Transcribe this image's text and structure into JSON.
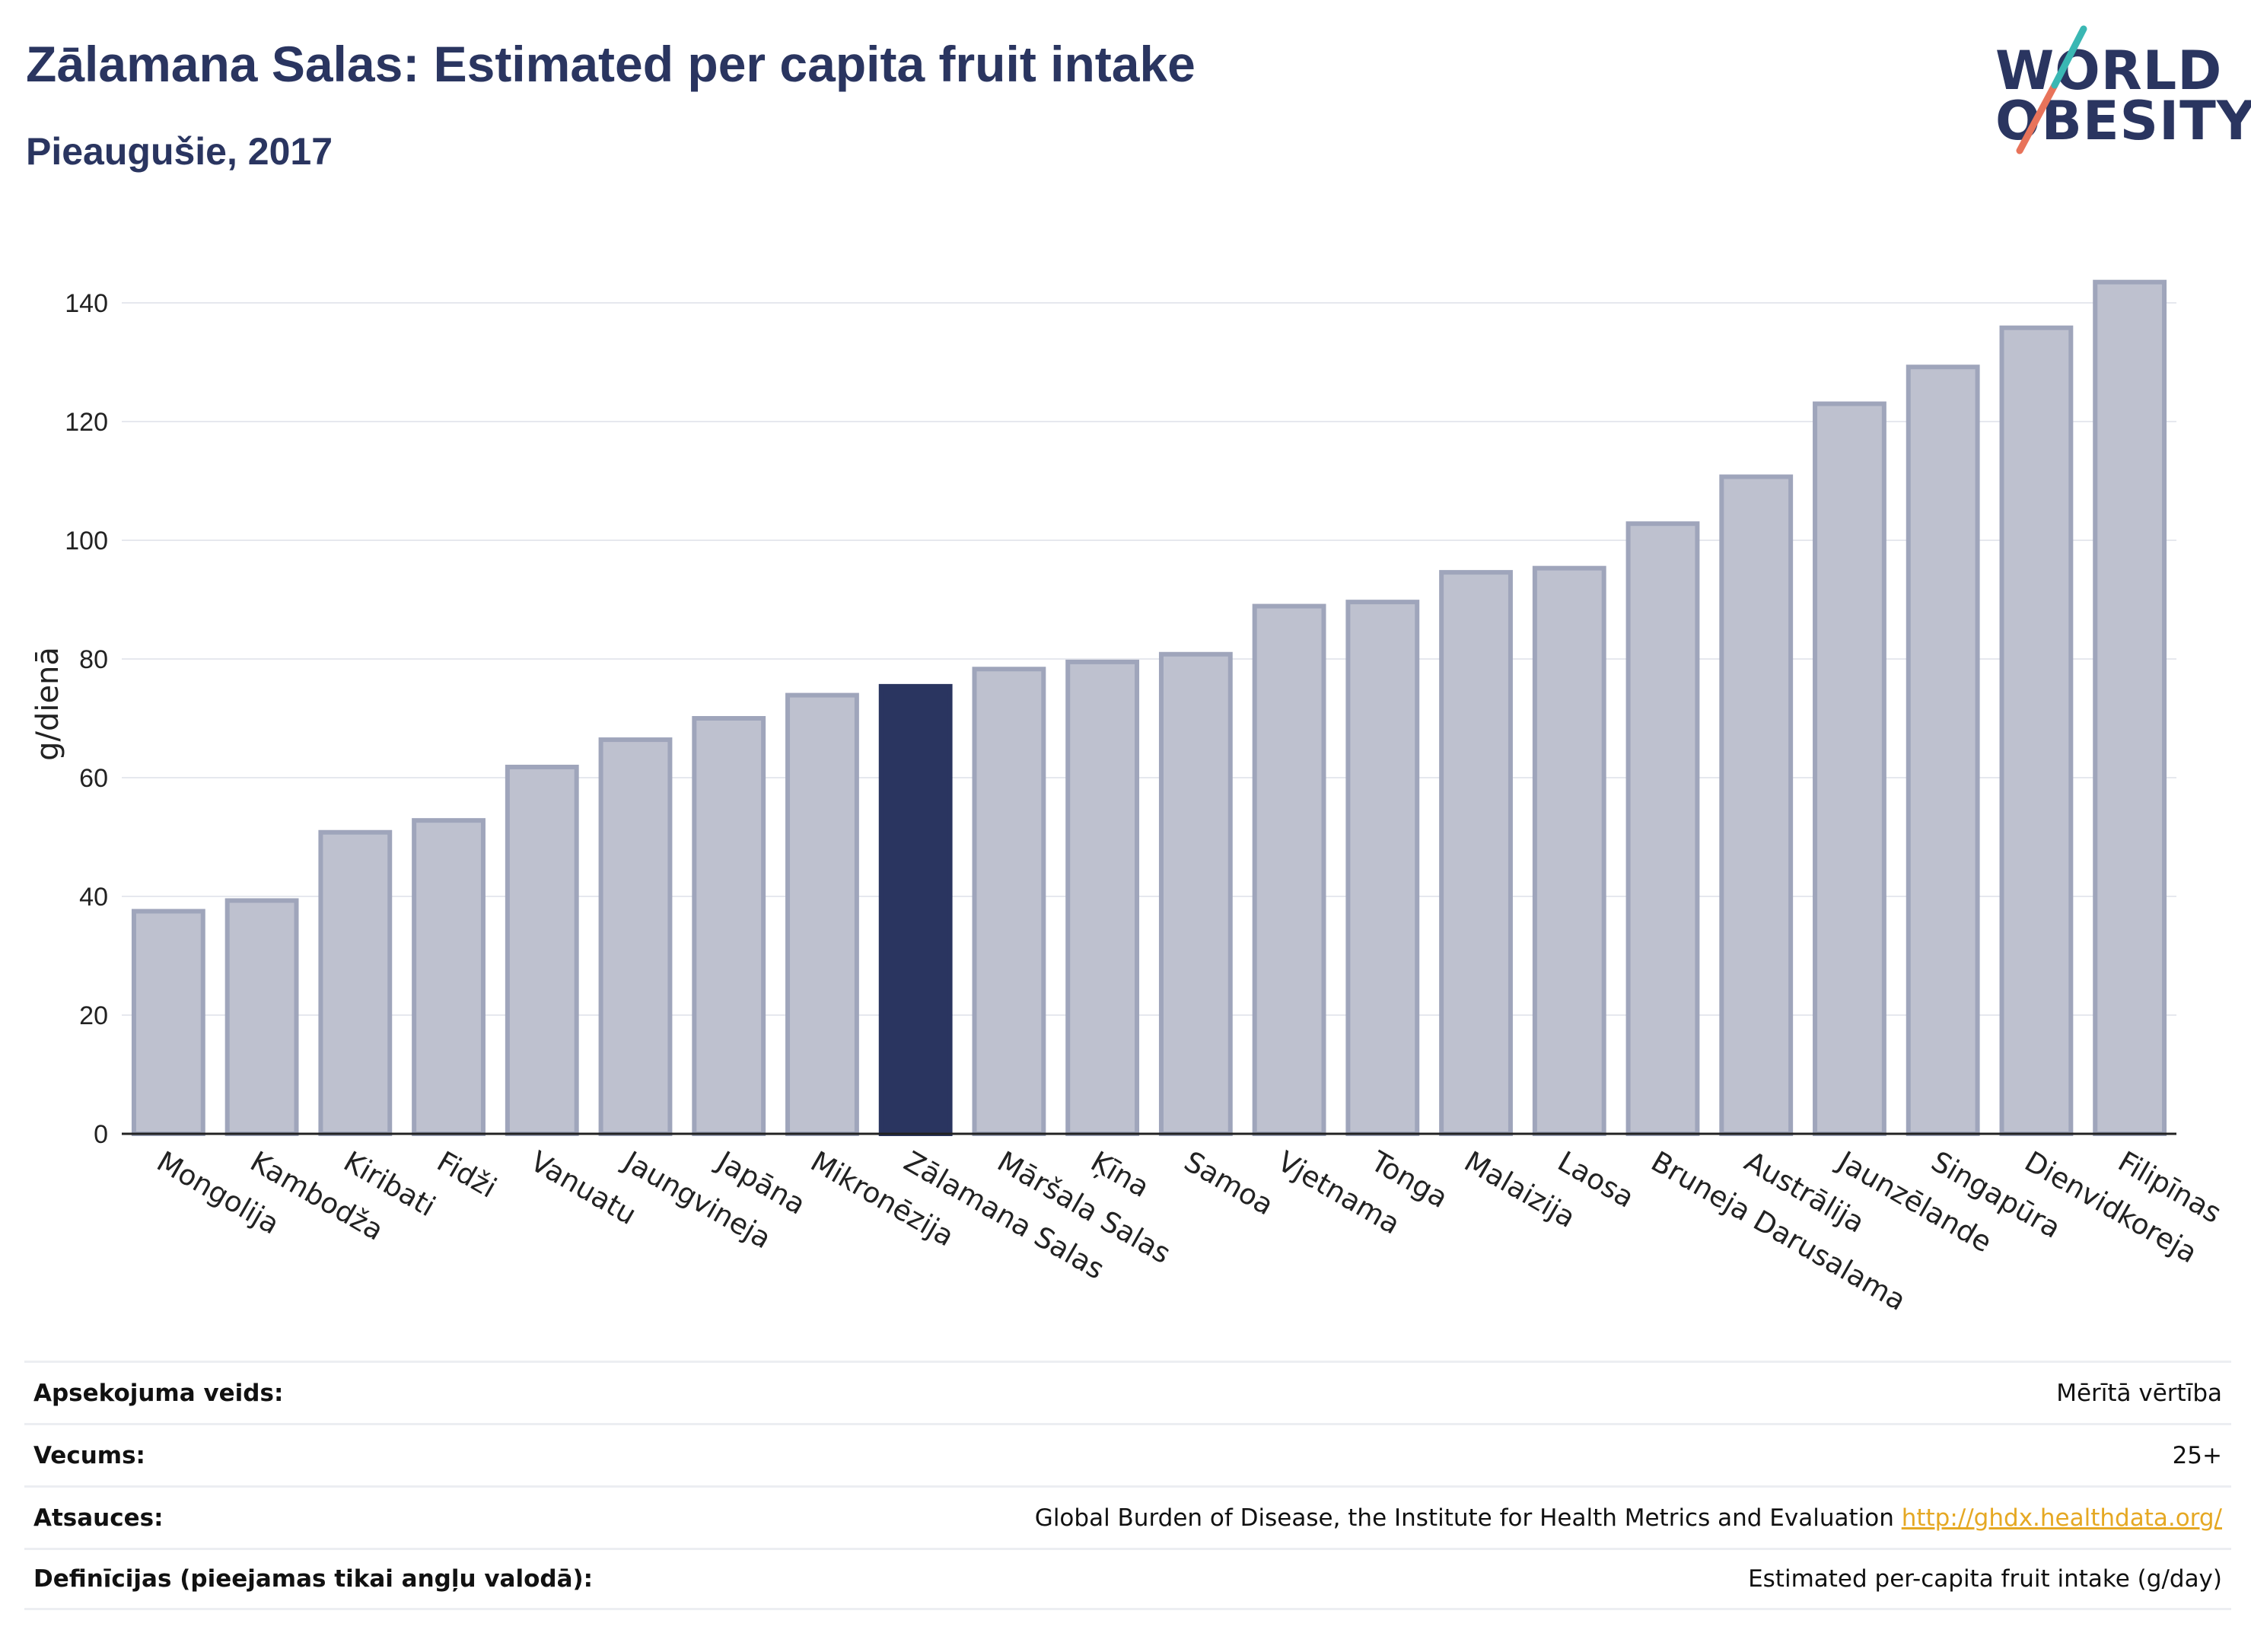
{
  "header": {
    "title": "Zālamana Salas: Estimated per capita fruit intake",
    "subtitle": "Pieaugušie, 2017"
  },
  "logo": {
    "line1": "WORLD",
    "line2": "OBESITY"
  },
  "colors": {
    "highlight": "#2a3560",
    "bar": "#bec1cf",
    "bar_border": "#9fa5bb",
    "logo_teal": "#3ab7b3",
    "logo_coral": "#e8735a"
  },
  "chart_data": {
    "type": "bar",
    "ylabel": "g/dienā",
    "ylim": [
      0,
      150
    ],
    "yticks": [
      0,
      20,
      40,
      60,
      80,
      100,
      120,
      140
    ],
    "grid": true,
    "highlight": "Zālamana Salas",
    "categories": [
      "Mongolija",
      "Kambodža",
      "Kiribati",
      "Fidži",
      "Vanuatu",
      "Jaungvineja",
      "Japāna",
      "Mikronēzija",
      "Zālamana Salas",
      "Māršala Salas",
      "Ķīna",
      "Samoa",
      "Vjetnama",
      "Tonga",
      "Malaizija",
      "Laosa",
      "Bruneja Darusalama",
      "Austrālija",
      "Jaunzēlande",
      "Singapūra",
      "Dienvidkoreja",
      "Filipīnas"
    ],
    "values": [
      37.5,
      39.3,
      50.8,
      52.8,
      61.8,
      66.4,
      70.0,
      73.9,
      75.4,
      78.3,
      79.5,
      80.8,
      88.9,
      89.6,
      94.6,
      95.3,
      102.8,
      110.7,
      123.0,
      129.2,
      135.8,
      143.5
    ]
  },
  "info": [
    {
      "label": "Apsekojuma veids:",
      "value": "Mērītā vērtība"
    },
    {
      "label": "Vecums:",
      "value": "25+"
    },
    {
      "label": "Atsauces:",
      "value": "Global Burden of Disease, the Institute for Health Metrics and Evaluation",
      "link": "http://ghdx.healthdata.org/"
    },
    {
      "label": "Definīcijas (pieejamas tikai angļu valodā):",
      "value": "Estimated per-capita fruit intake (g/day)"
    }
  ]
}
